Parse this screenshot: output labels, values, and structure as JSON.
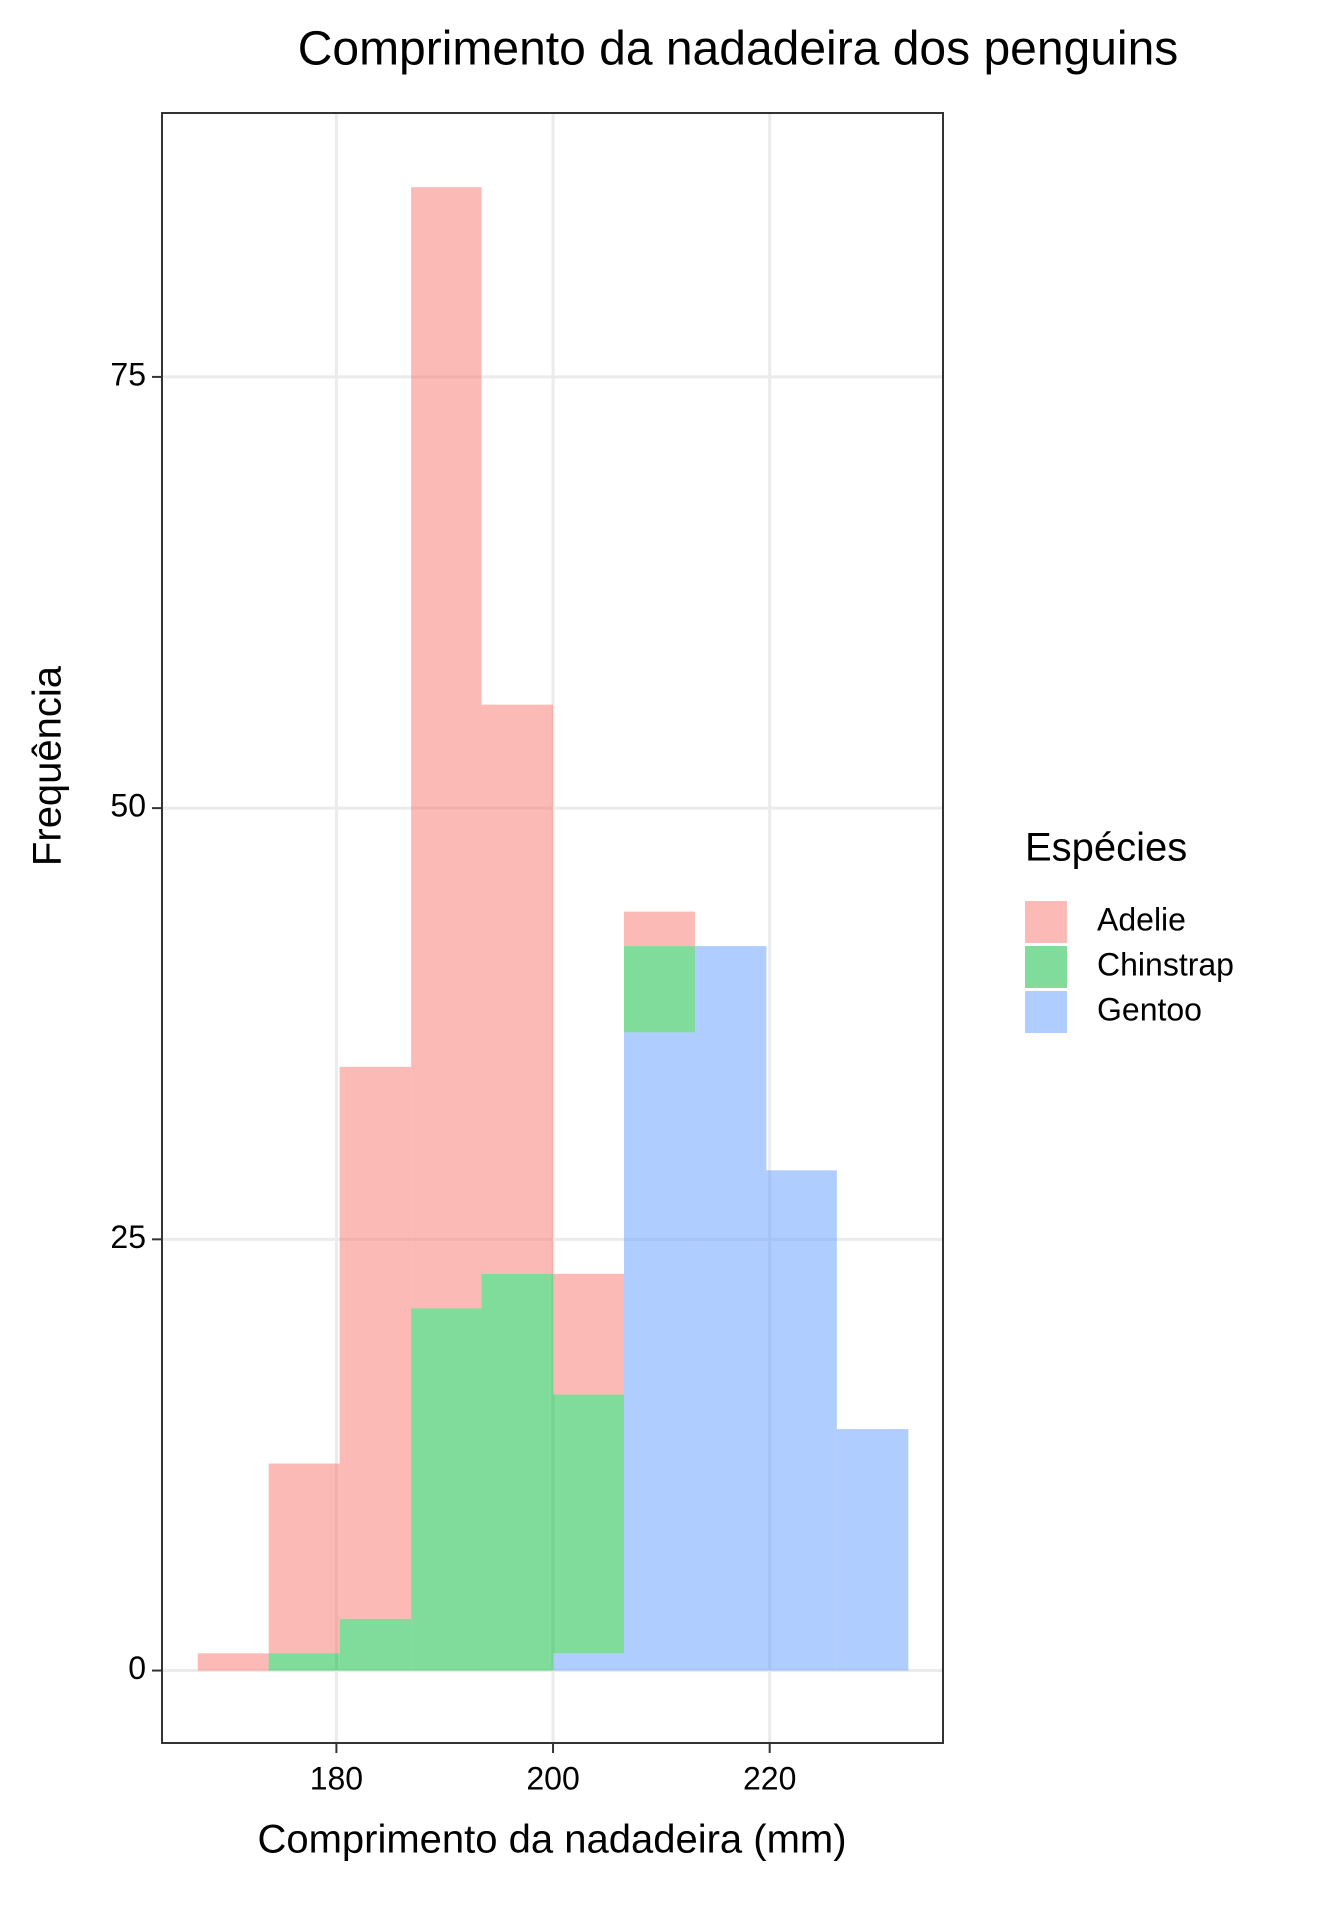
{
  "chart_data": {
    "type": "histogram",
    "title": "Comprimento da nadadeira dos penguins",
    "x_label": "Comprimento da nadadeira (mm)",
    "y_label": "Frequência",
    "legend_title": "Espécies",
    "legend_position": "right",
    "bins": [
      167.2,
      173.75,
      180.3,
      186.9,
      193.4,
      200,
      206.55,
      213.1,
      219.7,
      226.2,
      232.8
    ],
    "stacked": true,
    "opacity": 0.5,
    "series": [
      {
        "name": "Adelie",
        "color": "#F8766D",
        "values": [
          1,
          11,
          32,
          65,
          33,
          7,
          2,
          0,
          0,
          0
        ]
      },
      {
        "name": "Chinstrap",
        "color": "#00BA38",
        "values": [
          0,
          1,
          3,
          21,
          23,
          15,
          5,
          0,
          0,
          0
        ]
      },
      {
        "name": "Gentoo",
        "color": "#619CFF",
        "values": [
          0,
          0,
          0,
          0,
          0,
          1,
          37,
          42,
          29,
          14
        ]
      }
    ],
    "xlim": [
      163.9,
      236.0
    ],
    "ylim": [
      -4.2,
      90.3
    ],
    "xticks": [
      180,
      200,
      220
    ],
    "yticks": [
      0,
      25,
      50,
      75
    ],
    "grid": true
  }
}
